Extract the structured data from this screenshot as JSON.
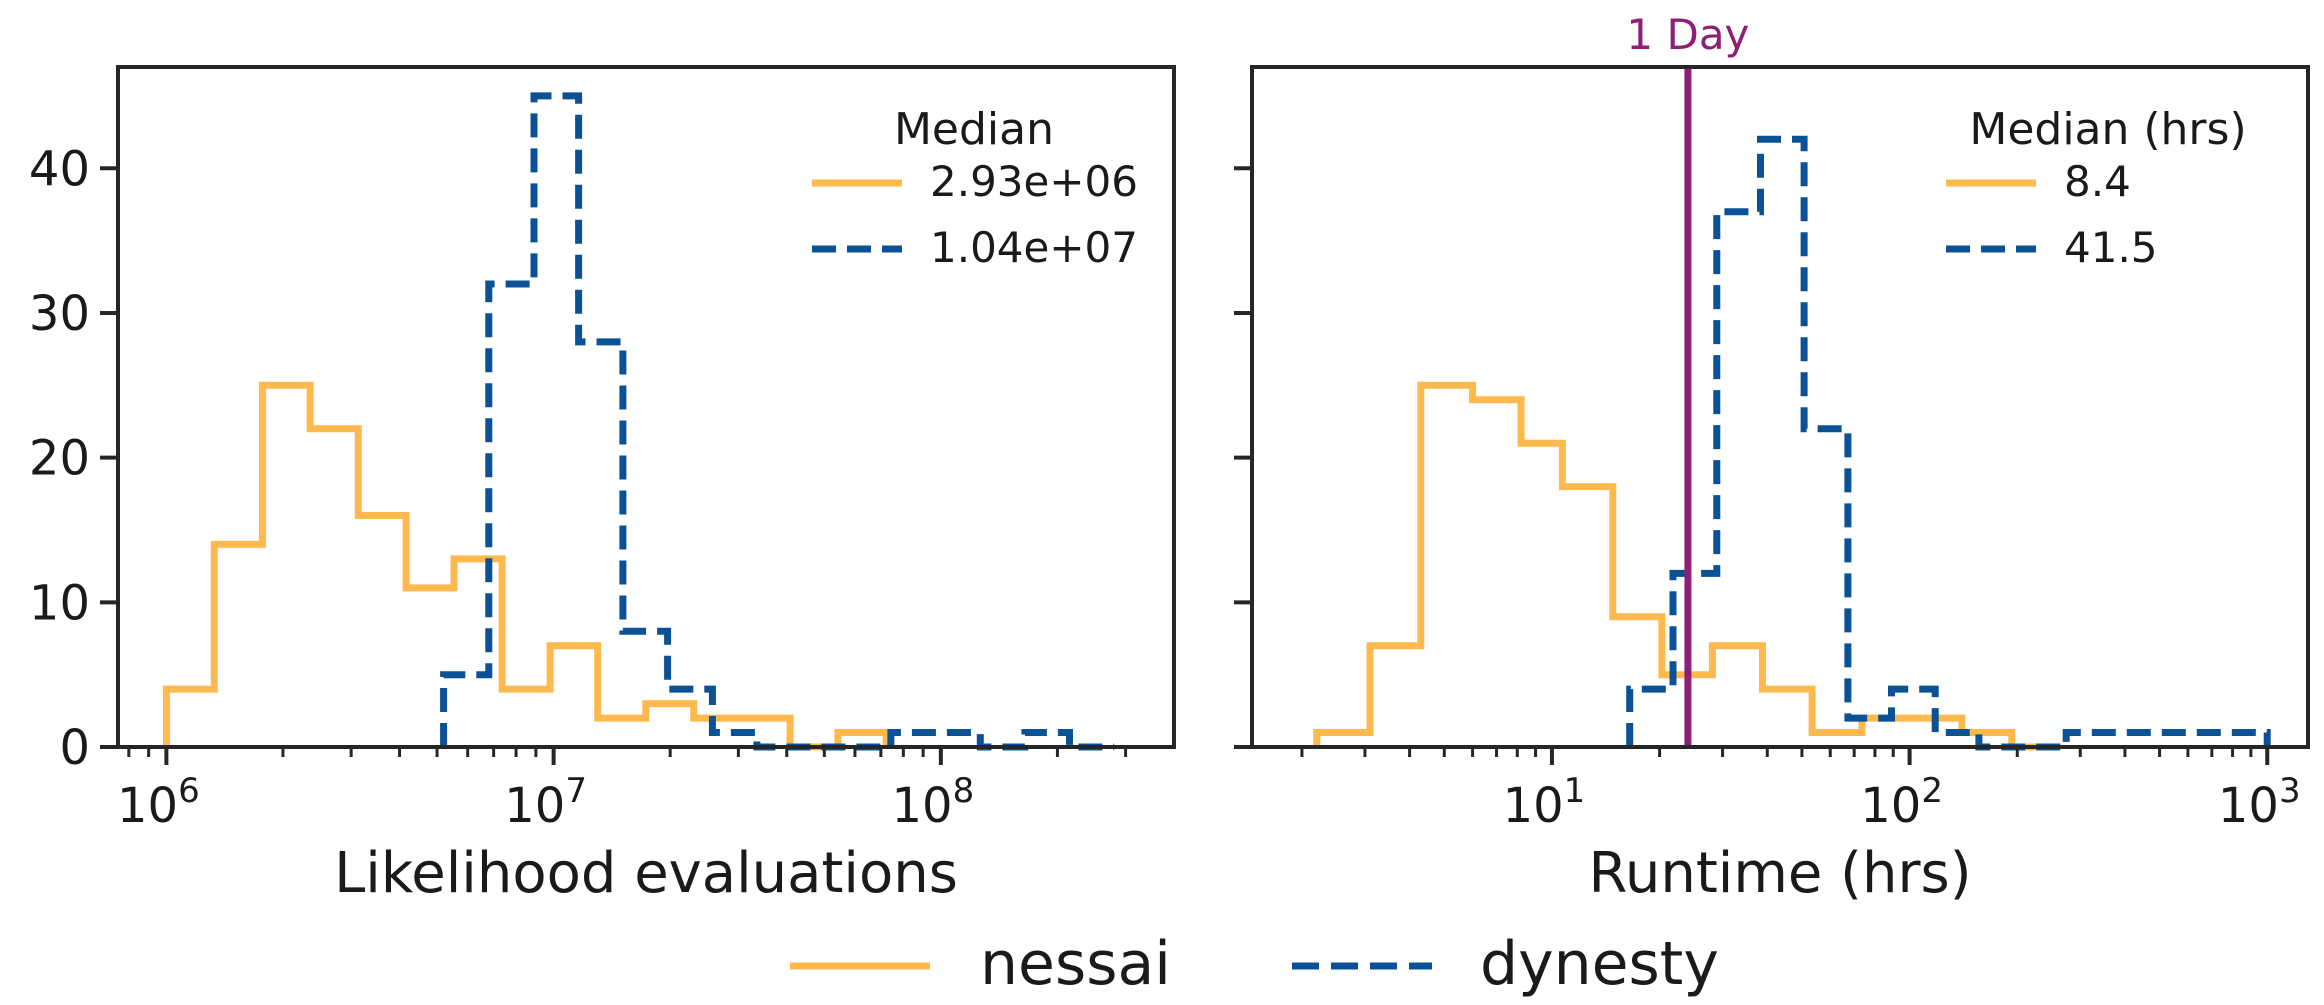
{
  "colors": {
    "nessai": "#FDB94E",
    "dynesty": "#0A5195",
    "day_line": "#8E1E76",
    "axis": "#262626"
  },
  "chart_data": [
    {
      "type": "histogram",
      "xlabel": "Likelihood evaluations",
      "ylabel": "",
      "xscale": "log",
      "xlim": [
        750000,
        400000000
      ],
      "ylim": [
        0,
        47
      ],
      "y_ticks": [
        0,
        10,
        20,
        30,
        40
      ],
      "x_ticks": [
        {
          "value": 1000000,
          "base": "10",
          "exp": "6"
        },
        {
          "value": 10000000,
          "base": "10",
          "exp": "7"
        },
        {
          "value": 100000000,
          "base": "10",
          "exp": "8"
        }
      ],
      "legend": {
        "title": "Median",
        "placement": "top-right",
        "entries": [
          {
            "series": "nessai",
            "label": "2.93e+06"
          },
          {
            "series": "dynesty",
            "label": "1.04e+07"
          }
        ]
      },
      "series": [
        {
          "key": "nessai",
          "style": "solid",
          "edges": [
            1000000,
            1330000,
            1770000,
            2350000,
            3130000,
            4160000,
            5530000,
            7360000,
            9790000,
            13000000,
            17300000,
            23000000,
            30600000,
            40800000,
            54200000,
            72200000
          ],
          "counts": [
            4,
            14,
            25,
            22,
            16,
            11,
            13,
            4,
            7,
            2,
            3,
            2,
            2,
            0,
            1
          ]
        },
        {
          "key": "dynesty",
          "style": "dashed",
          "edges": [
            5200000,
            6800000,
            8900000,
            11600000,
            15100000,
            19700000,
            25700000,
            33500000,
            43700000,
            57000000,
            74300000,
            96900000,
            126400000,
            164800000,
            214900000,
            280300000
          ],
          "counts": [
            5,
            32,
            45,
            28,
            8,
            4,
            1,
            0,
            0,
            0,
            1,
            1,
            0,
            1,
            0
          ]
        }
      ]
    },
    {
      "type": "histogram",
      "xlabel": "Runtime (hrs)",
      "ylabel": "",
      "xscale": "log",
      "xlim": [
        1.45,
        1300
      ],
      "ylim": [
        0,
        47
      ],
      "y_ticks": [
        0,
        10,
        20,
        30,
        40
      ],
      "x_ticks": [
        {
          "value": 10,
          "base": "10",
          "exp": "1"
        },
        {
          "value": 100,
          "base": "10",
          "exp": "2"
        },
        {
          "value": 1000,
          "base": "10",
          "exp": "3"
        }
      ],
      "vline": {
        "x": 24,
        "label": "1 Day"
      },
      "legend": {
        "title": "Median (hrs)",
        "placement": "top-right",
        "entries": [
          {
            "series": "nessai",
            "label": "8.4"
          },
          {
            "series": "dynesty",
            "label": "41.5"
          }
        ]
      },
      "series": [
        {
          "key": "nessai",
          "style": "solid",
          "edges": [
            2.2,
            3.1,
            4.3,
            6.0,
            8.2,
            10.7,
            14.8,
            20.3,
            28.1,
            38.8,
            53.4,
            73.6,
            101.6,
            140.0,
            193.0,
            250.0
          ],
          "counts": [
            1,
            7,
            25,
            24,
            21,
            18,
            9,
            5,
            7,
            4,
            1,
            2,
            2,
            1,
            0
          ]
        },
        {
          "key": "dynesty",
          "style": "dashed",
          "edges": [
            16.5,
            21.8,
            28.9,
            38.3,
            50.7,
            67.2,
            89.0,
            117.9,
            156.2,
            206.9,
            274.1,
            363.1,
            481.0,
            637.1,
            844.0,
            1000
          ],
          "counts": [
            4,
            12,
            37,
            42,
            22,
            2,
            4,
            1,
            0,
            0,
            1,
            1,
            1,
            1,
            1
          ]
        }
      ]
    }
  ],
  "figure_legend": {
    "entries": [
      {
        "series": "nessai",
        "label": "nessai"
      },
      {
        "series": "dynesty",
        "label": "dynesty"
      }
    ]
  }
}
